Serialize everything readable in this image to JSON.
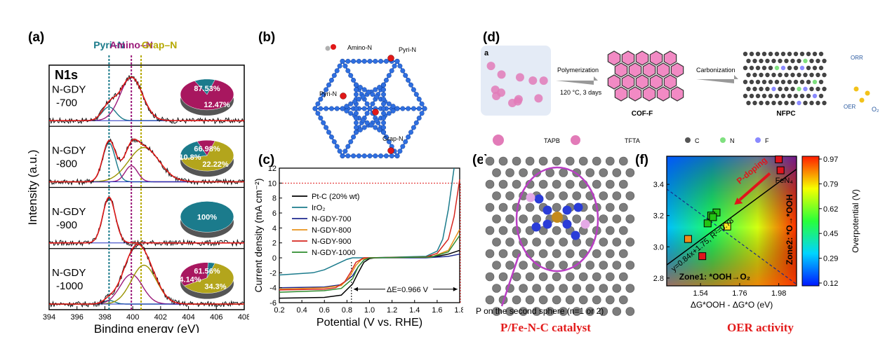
{
  "panels": {
    "a": {
      "label": "(a)"
    },
    "b": {
      "label": "(b)"
    },
    "c": {
      "label": "(c)"
    },
    "d": {
      "label": "(d)",
      "sublabel": "a"
    },
    "e": {
      "label": "(e)"
    },
    "f": {
      "label": "(f)"
    }
  },
  "xps": {
    "title": "N1s",
    "ylabel": "Intensity (a.u.)",
    "xlabel": "Binding energy (eV)",
    "xlim": [
      394,
      408
    ],
    "xticks": [
      "394",
      "396",
      "398",
      "400",
      "402",
      "404",
      "406",
      "408"
    ],
    "peak_labels": [
      {
        "name": "Pyri–N",
        "x": 398.3,
        "color": "#1a7a8a"
      },
      {
        "name": "Amino–N",
        "x": 399.9,
        "color": "#9b1a7a"
      },
      {
        "name": "Grap–N",
        "x": 400.6,
        "color": "#b5a800"
      }
    ],
    "samples": [
      {
        "name": "N-GDY",
        "sub": "-700",
        "pie": [
          {
            "label": "87.53%",
            "value": 87.53,
            "color": "#a8175f"
          },
          {
            "label": "12.47%",
            "value": 12.47,
            "color": "#1b7b8c"
          }
        ]
      },
      {
        "name": "N-GDY",
        "sub": "-800",
        "pie": [
          {
            "label": "66.98%",
            "value": 66.98,
            "color": "#b3a51c"
          },
          {
            "label": "22.22%",
            "value": 22.22,
            "color": "#1b7b8c"
          },
          {
            "label": "10.8%",
            "value": 10.8,
            "color": "#a8175f"
          }
        ]
      },
      {
        "name": "N-GDY",
        "sub": "-900",
        "pie": [
          {
            "label": "100%",
            "value": 100,
            "color": "#1b7b8c"
          }
        ]
      },
      {
        "name": "N-GDY",
        "sub": "-1000",
        "pie": [
          {
            "label": "61.56%",
            "value": 61.56,
            "color": "#b3a51c"
          },
          {
            "label": "34.3%",
            "value": 34.3,
            "color": "#a8175f"
          },
          {
            "label": "4.14%",
            "value": 4.14,
            "color": "#1b7b8c"
          }
        ]
      }
    ]
  },
  "structure_b": {
    "labels": [
      "Amino-N",
      "Pyri-N",
      "Pyri-N",
      "Grap-N"
    ]
  },
  "chart_data": [
    {
      "type": "line",
      "title": "",
      "xlabel": "Potential (V vs. RHE)",
      "ylabel": "Current density (mA cm⁻²)",
      "xlim": [
        0.2,
        1.8
      ],
      "ylim": [
        -6,
        12
      ],
      "xticks": [
        "0.2",
        "0.4",
        "0.6",
        "0.8",
        "1.0",
        "1.2",
        "1.4",
        "1.6",
        "1.8"
      ],
      "yticks": [
        "-6",
        "-4",
        "-2",
        "0",
        "2",
        "4",
        "6",
        "8",
        "10",
        "12"
      ],
      "annotation": "ΔE=0.966 V",
      "reference_line_y": 10,
      "series": [
        {
          "name": "Pt-C (20% wt)",
          "color": "#000000",
          "x": [
            0.2,
            0.6,
            0.75,
            0.85,
            0.9,
            0.95,
            1.0,
            1.05,
            1.6,
            1.7,
            1.8
          ],
          "y": [
            -5.4,
            -5.3,
            -5.0,
            -3.5,
            -2.0,
            -0.6,
            -0.1,
            0,
            0.2,
            0.5,
            1.0
          ]
        },
        {
          "name": "IrO₂",
          "color": "#1b7b8c",
          "x": [
            0.2,
            0.5,
            0.6,
            0.7,
            0.8,
            0.85,
            0.9,
            1.0,
            1.5,
            1.6,
            1.65,
            1.7,
            1.75
          ],
          "y": [
            -2.3,
            -2.0,
            -1.6,
            -0.9,
            -0.2,
            0,
            0,
            0,
            0.2,
            0.9,
            2.5,
            6.5,
            12
          ]
        },
        {
          "name": "N-GDY-700",
          "color": "#1f2a8f",
          "x": [
            0.2,
            0.6,
            0.75,
            0.85,
            0.9,
            0.95,
            1.0,
            1.5,
            1.7,
            1.8
          ],
          "y": [
            -4.0,
            -3.9,
            -3.6,
            -2.4,
            -1.2,
            -0.3,
            0,
            0,
            0.2,
            0.5
          ]
        },
        {
          "name": "N-GDY-800",
          "color": "#e8921a",
          "x": [
            0.2,
            0.6,
            0.75,
            0.82,
            0.88,
            0.93,
            1.0,
            1.55,
            1.7,
            1.8
          ],
          "y": [
            -4.2,
            -4.0,
            -3.7,
            -2.6,
            -1.0,
            -0.2,
            0,
            0.1,
            1.0,
            3.8
          ]
        },
        {
          "name": "N-GDY-900",
          "color": "#d6261f",
          "x": [
            0.2,
            0.6,
            0.7,
            0.78,
            0.83,
            0.88,
            0.95,
            1.5,
            1.6,
            1.7,
            1.75,
            1.8
          ],
          "y": [
            -4.3,
            -4.2,
            -4.0,
            -3.2,
            -2.0,
            -0.6,
            0,
            0.1,
            0.6,
            2.5,
            5.5,
            10.5
          ]
        },
        {
          "name": "N-GDY-1000",
          "color": "#2e8b2e",
          "x": [
            0.2,
            0.6,
            0.75,
            0.85,
            0.9,
            0.95,
            1.0,
            1.55,
            1.7,
            1.8
          ],
          "y": [
            -4.6,
            -4.4,
            -4.1,
            -2.8,
            -1.2,
            -0.3,
            0,
            0.1,
            0.8,
            3.0
          ]
        }
      ]
    },
    {
      "type": "heatmap",
      "title": "",
      "xlabel": "ΔG*OOH - ΔG*O (eV)",
      "ylabel": "",
      "xlim": [
        1.35,
        2.08
      ],
      "ylim": [
        2.75,
        3.58
      ],
      "xticks": [
        "1.54",
        "1.76",
        "1.98"
      ],
      "yticks": [
        "2.8",
        "3.0",
        "3.2",
        "3.4"
      ],
      "colorbar_label": "Overpotential (V)",
      "colorbar_ticks": [
        "0.97",
        "0.79",
        "0.62",
        "0.45",
        "0.29",
        "0.12"
      ],
      "fit_label": "y=0.84x+1.75, R²=0.78",
      "arrow_label": "P-doping",
      "zone1": "Zone1: *OOH→O₂",
      "zone2": "Zone2: *O→*OOH",
      "point_label": "FeN₄",
      "points": [
        {
          "x": 1.98,
          "y": 3.56,
          "color": "#e0141c"
        },
        {
          "x": 1.99,
          "y": 3.49,
          "color": "#e0141c"
        },
        {
          "x": 1.63,
          "y": 3.22,
          "color": "#23c414"
        },
        {
          "x": 1.6,
          "y": 3.2,
          "color": "#23c414"
        },
        {
          "x": 1.58,
          "y": 3.15,
          "color": "#23c414"
        },
        {
          "x": 1.61,
          "y": 3.19,
          "color": "#23c414"
        },
        {
          "x": 1.69,
          "y": 3.13,
          "color": "#f7e824"
        },
        {
          "x": 1.47,
          "y": 3.05,
          "color": "#f08c1a"
        },
        {
          "x": 1.55,
          "y": 2.94,
          "color": "#e0141c"
        }
      ]
    }
  ],
  "schematic_d": {
    "steps": [
      "Polymerization",
      "120 °C, 3 days",
      "Carbonization"
    ],
    "products": [
      "COF-F",
      "NFPC"
    ],
    "reactions": [
      "ORR",
      "OER",
      "O₂"
    ],
    "legend": [
      "TAPB",
      "TFTA",
      "C",
      "N",
      "F"
    ],
    "legend_colors": [
      "#6b6b6b",
      "#6b6b6b",
      "#555555",
      "#7fe07f",
      "#8a8aff"
    ]
  },
  "model_e": {
    "caption": "P on the second sphere (n=1 or 2)"
  },
  "captions": {
    "e": "P/Fe-N-C catalyst",
    "f": "OER activity"
  }
}
